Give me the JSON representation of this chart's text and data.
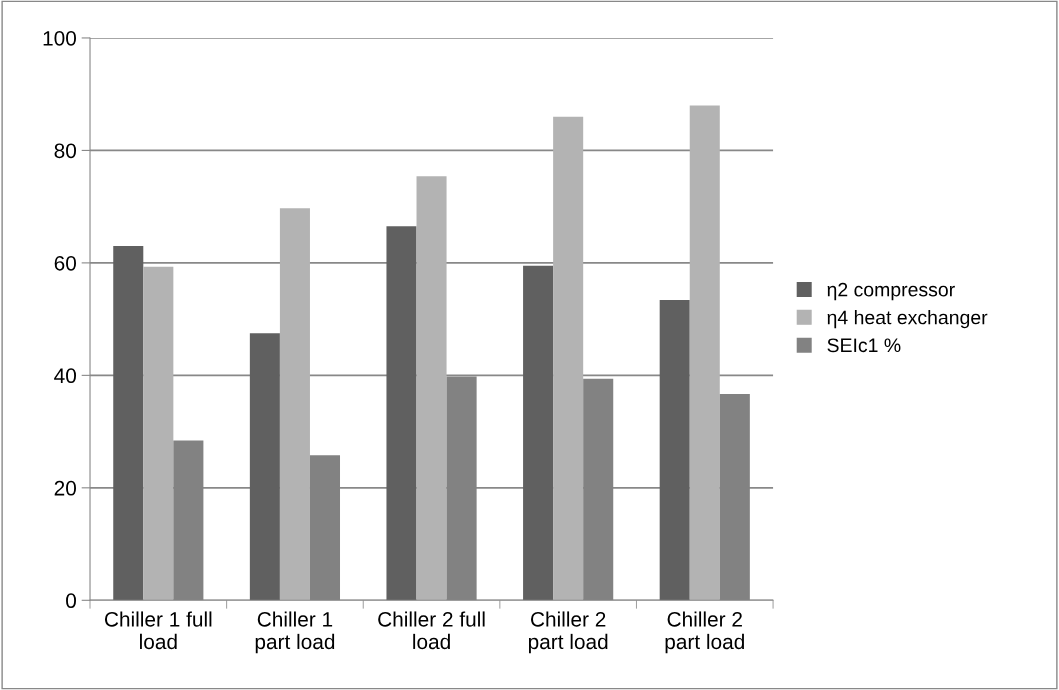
{
  "chart_data": {
    "type": "bar",
    "categories": [
      "Chiller 1 full\nload",
      "Chiller 1\npart load",
      "Chiller 2 full\nload",
      "Chiller 2\npart load",
      "Chiller 2\npart load"
    ],
    "series": [
      {
        "name": "η2 compressor",
        "color": "#606060",
        "values": [
          63.0,
          47.5,
          66.5,
          59.5,
          53.4
        ]
      },
      {
        "name": "η4 heat exchanger",
        "color": "#b3b3b3",
        "values": [
          59.3,
          69.7,
          75.4,
          86.0,
          88.0
        ]
      },
      {
        "name": "SEIc1 %",
        "color": "#828282",
        "values": [
          28.4,
          25.8,
          39.8,
          39.4,
          36.7
        ]
      }
    ],
    "ylim": [
      0,
      100
    ],
    "yticks": [
      0,
      20,
      40,
      60,
      80,
      100
    ],
    "grid": "y",
    "legend": "right"
  }
}
